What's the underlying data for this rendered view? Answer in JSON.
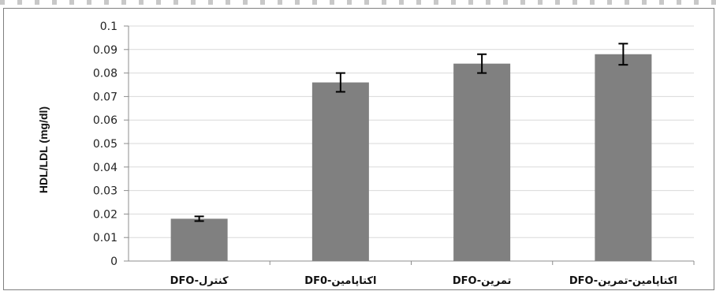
{
  "chart_data": {
    "type": "bar",
    "categories": [
      "DFO-کنترل",
      "DF0-اکتاپامین",
      "DFO-تمرین",
      "DFO-اکتاپامین-تمرین"
    ],
    "values": [
      0.018,
      0.076,
      0.084,
      0.088
    ],
    "errors": [
      0.001,
      0.004,
      0.004,
      0.0045
    ],
    "ylabel": "HDL/LDL (mg/dl)",
    "ylim": [
      0,
      0.1
    ],
    "yticks": [
      "0",
      "0.01",
      "0.02",
      "0.03",
      "0.04",
      "0.05",
      "0.06",
      "0.07",
      "0.08",
      "0.09",
      "0.1"
    ],
    "grid": true,
    "bar_color": "#808080",
    "grid_color": "#d9d9d9"
  }
}
